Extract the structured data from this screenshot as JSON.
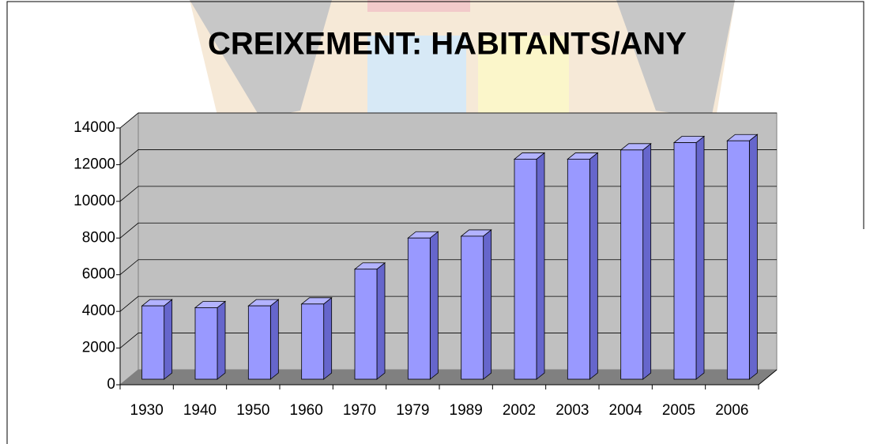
{
  "chart_data": {
    "type": "bar3d",
    "title": "CREIXEMENT: HABITANTS/ANY",
    "categories": [
      "1930",
      "1940",
      "1950",
      "1960",
      "1970",
      "1979",
      "1989",
      "2002",
      "2003",
      "2004",
      "2005",
      "2006"
    ],
    "values": [
      4000,
      3900,
      4000,
      4100,
      6000,
      7700,
      7800,
      12000,
      12000,
      12500,
      12900,
      13000
    ],
    "color": "#9999ff",
    "ylim": [
      0,
      14000
    ],
    "yticks": [
      0,
      2000,
      4000,
      6000,
      8000,
      10000,
      12000,
      14000
    ],
    "grid": true
  }
}
